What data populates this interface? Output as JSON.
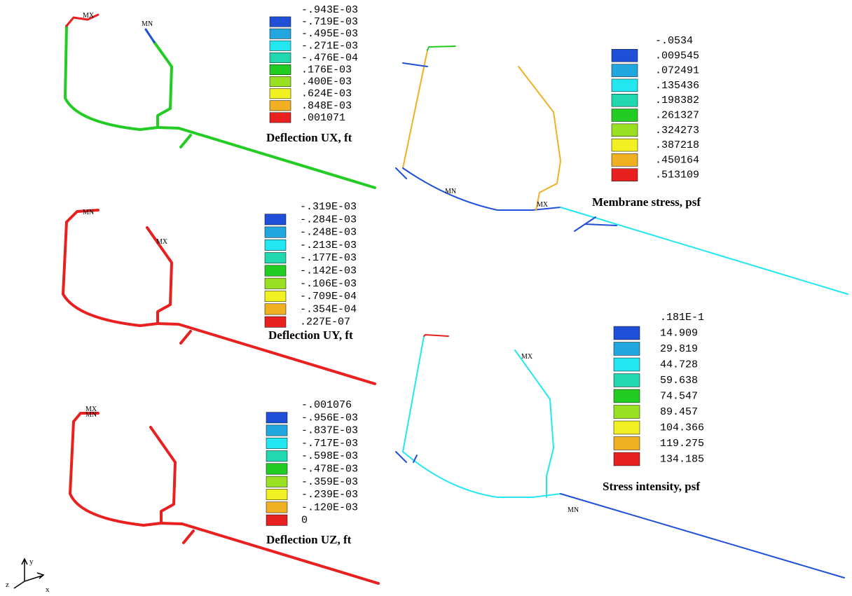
{
  "legend_colors": [
    "#1f4fd8",
    "#22a6e0",
    "#22e6f0",
    "#22d8b0",
    "#22cc22",
    "#99e022",
    "#f0f022",
    "#f0b022",
    "#e82020"
  ],
  "panels": [
    {
      "title": "Deflection UX, ft",
      "legend": [
        "-.943E-03",
        "-.719E-03",
        "-.495E-03",
        "-.271E-03",
        "-.476E-04",
        ".176E-03",
        ".400E-03",
        ".624E-03",
        ".848E-03",
        ".001071"
      ],
      "markers": [
        "MX",
        "MN"
      ]
    },
    {
      "title": "Deflection UY, ft",
      "legend": [
        "-.319E-03",
        "-.284E-03",
        "-.248E-03",
        "-.213E-03",
        "-.177E-03",
        "-.142E-03",
        "-.106E-03",
        "-.709E-04",
        "-.354E-04",
        ".227E-07"
      ],
      "markers": [
        "MN",
        "MX"
      ]
    },
    {
      "title": "Deflection UZ, ft",
      "legend": [
        "-.001076",
        "-.956E-03",
        "-.837E-03",
        "-.717E-03",
        "-.598E-03",
        "-.478E-03",
        "-.359E-03",
        "-.239E-03",
        "-.120E-03",
        "0"
      ],
      "markers": [
        "MX",
        "MN"
      ]
    },
    {
      "title": "Membrane stress, psf",
      "legend": [
        "-.0534",
        ".009545",
        ".072491",
        ".135436",
        ".198382",
        ".261327",
        ".324273",
        ".387218",
        ".450164",
        ".513109"
      ],
      "markers": [
        "MN",
        "MX"
      ]
    },
    {
      "title": "Stress intensity, psf",
      "legend": [
        ".181E-1",
        "14.909",
        "29.819",
        "44.728",
        "59.638",
        "74.547",
        "89.457",
        "104.366",
        "119.275",
        "134.185"
      ],
      "markers": [
        "MX",
        "MN"
      ]
    }
  ],
  "axes": {
    "y": "y",
    "z": "z",
    "x": "x"
  }
}
